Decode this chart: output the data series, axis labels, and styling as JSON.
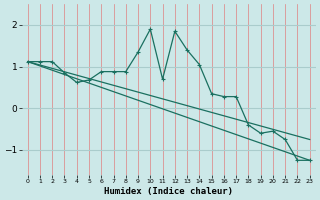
{
  "xlabel": "Humidex (Indice chaleur)",
  "bg_color": "#cce8e8",
  "grid_color_v": "#e08080",
  "grid_color_h": "#aacccc",
  "line_color": "#1a7060",
  "xlim": [
    -0.5,
    23.5
  ],
  "ylim": [
    -1.6,
    2.5
  ],
  "x_ticks": [
    0,
    1,
    2,
    3,
    4,
    5,
    6,
    7,
    8,
    9,
    10,
    11,
    12,
    13,
    14,
    15,
    16,
    17,
    18,
    19,
    20,
    21,
    22,
    23
  ],
  "y_ticks": [
    -1,
    0,
    1,
    2
  ],
  "line1_x": [
    0,
    1,
    2,
    3,
    4,
    5,
    6,
    7,
    8,
    9,
    10,
    11,
    12,
    13,
    14,
    15,
    16,
    17,
    18,
    19,
    20,
    21,
    22,
    23
  ],
  "line1_y": [
    1.12,
    1.12,
    1.12,
    0.85,
    0.62,
    0.68,
    0.88,
    0.88,
    0.88,
    1.35,
    1.9,
    0.7,
    1.85,
    1.4,
    1.05,
    0.35,
    0.28,
    0.28,
    -0.4,
    -0.6,
    -0.55,
    -0.75,
    -1.25,
    -1.25
  ],
  "line2_x": [
    0,
    23
  ],
  "line2_y": [
    1.12,
    -1.25
  ],
  "line3_x": [
    0,
    23
  ],
  "line3_y": [
    1.12,
    -0.75
  ]
}
